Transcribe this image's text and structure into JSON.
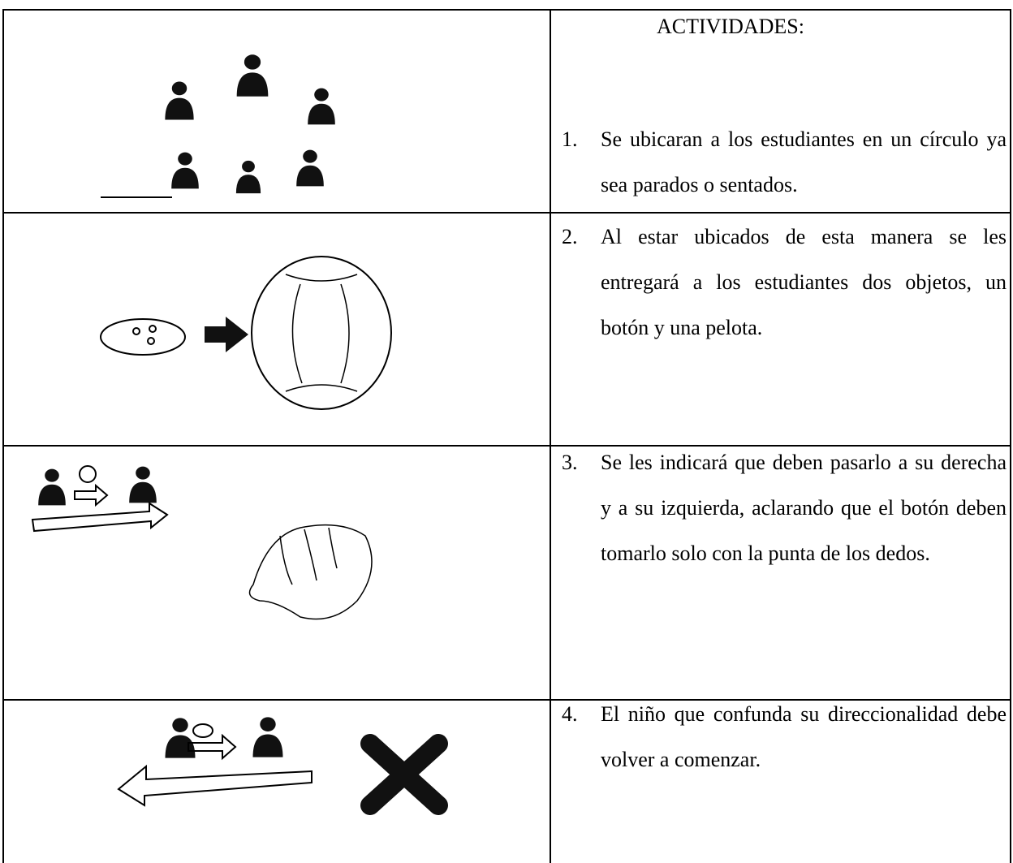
{
  "header": "ACTIVIDADES:",
  "activities": [
    {
      "number": "1.",
      "text": "Se ubicaran a los estudiantes en un círculo ya sea parados o sentados."
    },
    {
      "number": "2.",
      "text": "Al estar ubicados de esta manera se les entregará a los estudiantes dos objetos, un botón y una pelota."
    },
    {
      "number": "3.",
      "text": "Se les indicará que deben pasarlo a su derecha y a su izquierda, aclarando que el botón deben tomarlo solo con la punta de los dedos."
    },
    {
      "number": "4.",
      "text": "El niño que confunda su direccionalidad debe volver a comenzar."
    }
  ]
}
